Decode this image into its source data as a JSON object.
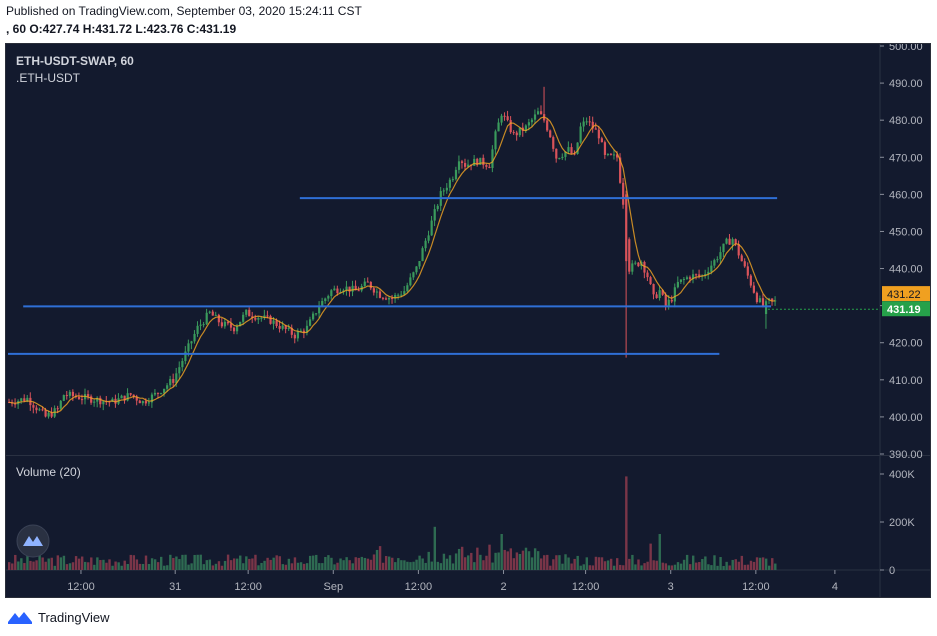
{
  "header": {
    "published": "Published on TradingView.com, September 03, 2020 15:24:11 CST",
    "ohlc": ", 60 O:427.74 H:431.72 L:423.76 C:431.19"
  },
  "footer": {
    "brand": "TradingView"
  },
  "colors": {
    "background": "#131a2e",
    "up": "#3a9a5c",
    "down": "#d9535a",
    "hline": "#2f6fd6",
    "ma": "#f5a623",
    "price_label_current": "#26a14a",
    "price_label_prev": "#f0a020"
  },
  "chart_data": [
    {
      "type": "candlestick",
      "title": "ETH-USDT-SWAP, 60",
      "subtitle": ".ETH-USDT",
      "timeframe": "60",
      "x_ticks": [
        "12:00",
        "31",
        "12:00",
        "Sep",
        "12:00",
        "2",
        "12:00",
        "3",
        "12:00",
        "4"
      ],
      "y_ticks": [
        390,
        400,
        410,
        420,
        430,
        440,
        450,
        460,
        470,
        480,
        490,
        500
      ],
      "ylim": [
        390,
        500
      ],
      "current_price": 431.19,
      "prev_price_label": 431.22,
      "grid": false,
      "close_path": [
        [
          0,
          404
        ],
        [
          6,
          405
        ],
        [
          12,
          400
        ],
        [
          16,
          402
        ],
        [
          18,
          406
        ],
        [
          26,
          405
        ],
        [
          34,
          404
        ],
        [
          40,
          406
        ],
        [
          44,
          404
        ],
        [
          48,
          406
        ],
        [
          54,
          410
        ],
        [
          58,
          417
        ],
        [
          62,
          424
        ],
        [
          66,
          428
        ],
        [
          70,
          425
        ],
        [
          74,
          424
        ],
        [
          78,
          428
        ],
        [
          82,
          427
        ],
        [
          86,
          426
        ],
        [
          90,
          424
        ],
        [
          94,
          422
        ],
        [
          98,
          424
        ],
        [
          102,
          430
        ],
        [
          106,
          434
        ],
        [
          110,
          435
        ],
        [
          114,
          434
        ],
        [
          118,
          436
        ],
        [
          122,
          433
        ],
        [
          126,
          432
        ],
        [
          130,
          434
        ],
        [
          134,
          440
        ],
        [
          138,
          450
        ],
        [
          142,
          460
        ],
        [
          146,
          465
        ],
        [
          148,
          470
        ],
        [
          150,
          468
        ],
        [
          154,
          469
        ],
        [
          158,
          468
        ],
        [
          160,
          476
        ],
        [
          162,
          482
        ],
        [
          166,
          476
        ],
        [
          170,
          478
        ],
        [
          174,
          482
        ],
        [
          176,
          480
        ],
        [
          178,
          476
        ],
        [
          180,
          470
        ],
        [
          184,
          472
        ],
        [
          186,
          470
        ],
        [
          188,
          478
        ],
        [
          190,
          480
        ],
        [
          194,
          476
        ],
        [
          196,
          470
        ],
        [
          198,
          470
        ],
        [
          200,
          470
        ],
        [
          202,
          458
        ],
        [
          204,
          440
        ],
        [
          208,
          442
        ],
        [
          210,
          438
        ],
        [
          212,
          432
        ],
        [
          214,
          434
        ],
        [
          216,
          430
        ],
        [
          218,
          432
        ],
        [
          220,
          436
        ],
        [
          224,
          438
        ],
        [
          228,
          438
        ],
        [
          232,
          442
        ],
        [
          236,
          447
        ],
        [
          238,
          448
        ],
        [
          240,
          444
        ],
        [
          242,
          440
        ],
        [
          244,
          436
        ],
        [
          246,
          432
        ],
        [
          248,
          430
        ],
        [
          250,
          431
        ]
      ],
      "hlines": [
        {
          "price": 459,
          "x_start": 96,
          "x_end": 253
        },
        {
          "price": 429.8,
          "x_start": 5,
          "x_end": 251
        },
        {
          "price": 417,
          "x_start": 0,
          "x_end": 234
        }
      ],
      "ma_series": {
        "name": "MA",
        "visible": true
      }
    },
    {
      "type": "bar",
      "title": "Volume (20)",
      "y_ticks": [
        "0",
        "200K",
        "400K"
      ],
      "ylim": [
        0,
        400000
      ],
      "volume_spikes": [
        {
          "bar": 140,
          "value": 180000
        },
        {
          "bar": 162,
          "value": 150000
        },
        {
          "bar": 203,
          "value": 390000
        },
        {
          "bar": 211,
          "value": 110000
        },
        {
          "bar": 214,
          "value": 150000
        }
      ],
      "volume_base": 55000
    }
  ]
}
